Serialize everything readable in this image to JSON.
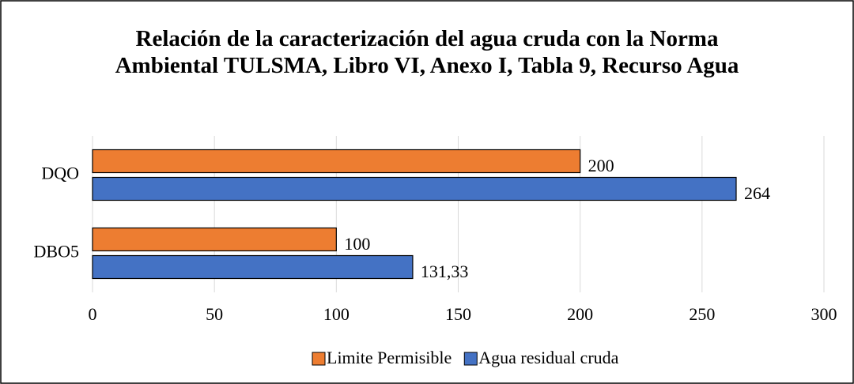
{
  "chart_data": {
    "type": "hbar",
    "title": "Relación de la caracterización del agua cruda con la Norma Ambiental TULSMA, Libro VI, Anexo I, Tabla 9, Recurso Agua",
    "categories": [
      "DQO",
      "DBO5"
    ],
    "series": [
      {
        "name": "Limite Permisible",
        "color": "#ed7d31",
        "values": [
          200,
          100
        ]
      },
      {
        "name": "Agua residual cruda",
        "color": "#4472c4",
        "values": [
          264,
          131.33
        ],
        "value_labels": [
          "264",
          "131,33"
        ]
      }
    ],
    "xlim": [
      0,
      300
    ],
    "xticks": [
      0,
      50,
      100,
      150,
      200,
      250,
      300
    ],
    "grid": true,
    "legend": "bottom"
  }
}
